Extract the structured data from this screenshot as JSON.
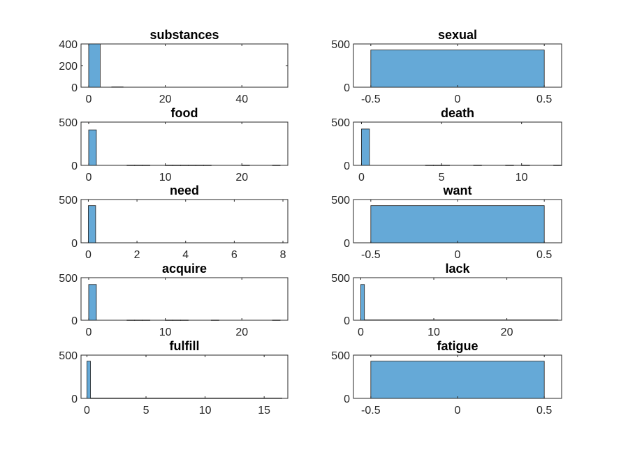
{
  "chart_data": [
    {
      "type": "bar",
      "title": "substances",
      "xlim": [
        -2,
        52
      ],
      "ylim": [
        0,
        400
      ],
      "xticks": [
        0,
        20,
        40
      ],
      "yticks": [
        0,
        200,
        400
      ],
      "bars": [
        {
          "x0": 0,
          "x1": 3,
          "value": 440
        },
        {
          "x0": 6,
          "x1": 9,
          "value": 3
        }
      ]
    },
    {
      "type": "bar",
      "title": "sexual",
      "xlim": [
        -0.6,
        0.6
      ],
      "ylim": [
        0,
        500
      ],
      "xticks": [
        -0.5,
        0,
        0.5
      ],
      "xticklabels": [
        "-0.5",
        "0",
        "0.5"
      ],
      "yticks": [
        0,
        500
      ],
      "bars": [
        {
          "x0": -0.5,
          "x1": 0.5,
          "value": 430
        }
      ]
    },
    {
      "type": "bar",
      "title": "food",
      "xlim": [
        -1,
        26
      ],
      "ylim": [
        0,
        500
      ],
      "xticks": [
        0,
        10,
        20
      ],
      "yticks": [
        0,
        500
      ],
      "bars": [
        {
          "x0": 0,
          "x1": 1,
          "value": 410
        },
        {
          "x0": 5,
          "x1": 6,
          "value": 2
        },
        {
          "x0": 6,
          "x1": 7,
          "value": 2
        },
        {
          "x0": 7,
          "x1": 8,
          "value": 2
        },
        {
          "x0": 10,
          "x1": 11,
          "value": 2
        },
        {
          "x0": 11,
          "x1": 12,
          "value": 2
        },
        {
          "x0": 12,
          "x1": 13,
          "value": 2
        },
        {
          "x0": 13,
          "x1": 14,
          "value": 2
        },
        {
          "x0": 14,
          "x1": 15,
          "value": 2
        },
        {
          "x0": 15,
          "x1": 16,
          "value": 2
        },
        {
          "x0": 20,
          "x1": 21,
          "value": 2
        },
        {
          "x0": 24,
          "x1": 25,
          "value": 2
        }
      ]
    },
    {
      "type": "bar",
      "title": "death",
      "xlim": [
        -0.5,
        12.5
      ],
      "ylim": [
        0,
        500
      ],
      "xticks": [
        0,
        5,
        10
      ],
      "yticks": [
        0,
        500
      ],
      "bars": [
        {
          "x0": 0,
          "x1": 0.5,
          "value": 420
        },
        {
          "x0": 4,
          "x1": 4.5,
          "value": 2
        },
        {
          "x0": 4.5,
          "x1": 5,
          "value": 2
        },
        {
          "x0": 5,
          "x1": 5.5,
          "value": 2
        },
        {
          "x0": 7,
          "x1": 7.5,
          "value": 2
        },
        {
          "x0": 9,
          "x1": 9.5,
          "value": 2
        },
        {
          "x0": 10,
          "x1": 10.5,
          "value": 2
        },
        {
          "x0": 12,
          "x1": 12.5,
          "value": 2
        }
      ]
    },
    {
      "type": "bar",
      "title": "need",
      "xlim": [
        -0.3,
        8.2
      ],
      "ylim": [
        0,
        500
      ],
      "xticks": [
        0,
        2,
        4,
        6,
        8
      ],
      "yticks": [
        0,
        500
      ],
      "bars": [
        {
          "x0": 0,
          "x1": 0.3,
          "value": 430
        }
      ]
    },
    {
      "type": "bar",
      "title": "want",
      "xlim": [
        -0.6,
        0.6
      ],
      "ylim": [
        0,
        500
      ],
      "xticks": [
        -0.5,
        0,
        0.5
      ],
      "xticklabels": [
        "-0.5",
        "0",
        "0.5"
      ],
      "yticks": [
        0,
        500
      ],
      "bars": [
        {
          "x0": -0.5,
          "x1": 0.5,
          "value": 430
        }
      ]
    },
    {
      "type": "bar",
      "title": "acquire",
      "xlim": [
        -1,
        26
      ],
      "ylim": [
        0,
        500
      ],
      "xticks": [
        0,
        10,
        20
      ],
      "yticks": [
        0,
        500
      ],
      "bars": [
        {
          "x0": 0,
          "x1": 1,
          "value": 420
        },
        {
          "x0": 5,
          "x1": 6,
          "value": 2
        },
        {
          "x0": 6,
          "x1": 7,
          "value": 2
        },
        {
          "x0": 7,
          "x1": 8,
          "value": 2
        },
        {
          "x0": 10,
          "x1": 11,
          "value": 2
        },
        {
          "x0": 11,
          "x1": 12,
          "value": 2
        },
        {
          "x0": 12,
          "x1": 13,
          "value": 2
        },
        {
          "x0": 16,
          "x1": 17,
          "value": 2
        },
        {
          "x0": 24,
          "x1": 25,
          "value": 2
        }
      ]
    },
    {
      "type": "bar",
      "title": "lack",
      "xlim": [
        -1,
        27.5
      ],
      "ylim": [
        0,
        500
      ],
      "xticks": [
        0,
        10,
        20
      ],
      "yticks": [
        0,
        500
      ],
      "bars": [
        {
          "x0": 0,
          "x1": 0.5,
          "value": 420
        },
        {
          "x0": 0.5,
          "x1": 27,
          "value": 4
        }
      ]
    },
    {
      "type": "bar",
      "title": "fulfill",
      "xlim": [
        -0.5,
        17
      ],
      "ylim": [
        0,
        500
      ],
      "xticks": [
        0,
        5,
        10,
        15
      ],
      "yticks": [
        0,
        500
      ],
      "bars": [
        {
          "x0": 0,
          "x1": 0.3,
          "value": 430
        },
        {
          "x0": 0.3,
          "x1": 16.5,
          "value": 3
        }
      ]
    },
    {
      "type": "bar",
      "title": "fatigue",
      "xlim": [
        -0.6,
        0.6
      ],
      "ylim": [
        0,
        500
      ],
      "xticks": [
        -0.5,
        0,
        0.5
      ],
      "xticklabels": [
        "-0.5",
        "0",
        "0.5"
      ],
      "yticks": [
        0,
        500
      ],
      "bars": [
        {
          "x0": -0.5,
          "x1": 0.5,
          "value": 430
        }
      ]
    }
  ]
}
